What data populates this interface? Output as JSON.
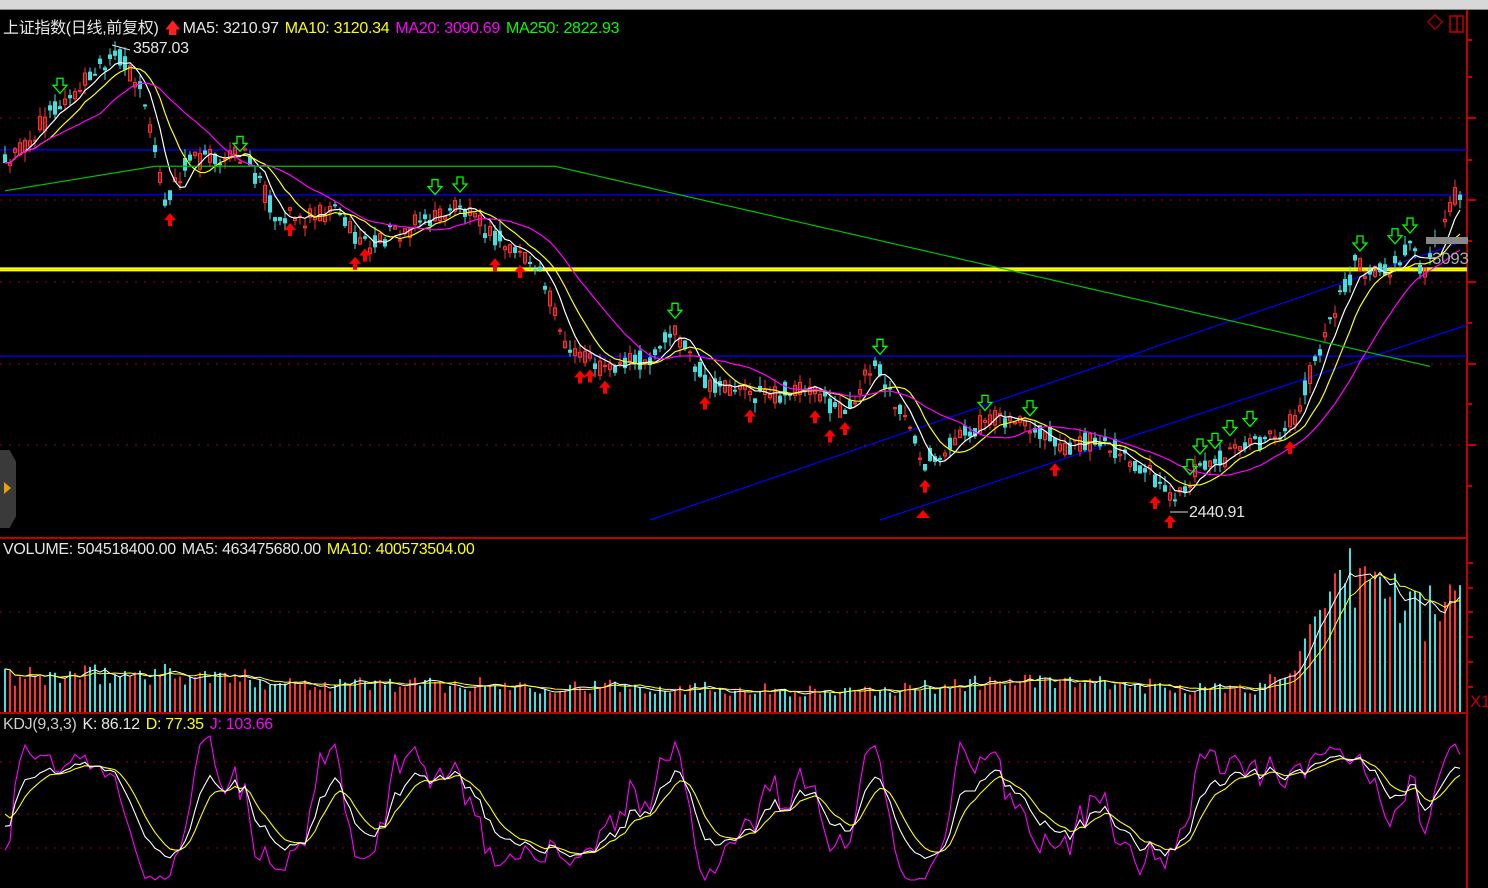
{
  "header": {
    "title": "上证指数(日线,前复权)",
    "ma5": "MA5: 3210.97",
    "ma10": "MA10: 3120.34",
    "ma20": "MA20: 3090.69",
    "ma250": "MA250: 2822.93"
  },
  "volume_header": {
    "volume": "VOLUME: 504518400.00",
    "ma5": "MA5: 463475680.00",
    "ma10": "MA10: 400573504.00"
  },
  "kdj_header": {
    "name": "KDJ(9,3,3)",
    "k": "K: 86.12",
    "d": "D: 77.35",
    "j": "J: 103.66"
  },
  "annotations": {
    "high_label": "3587.03",
    "low_label": "2440.91",
    "axis_partial_label": "3093",
    "volume_axis_unit": "X1"
  },
  "colors": {
    "up": "#ff3030",
    "down": "#40e0e0",
    "ma5": "#ffffff",
    "ma10": "#ffff00",
    "ma20": "#ff00ff",
    "ma250": "#00c000",
    "trendline": "#0000ff",
    "grid": "#a00000"
  },
  "chart_data": {
    "type": "candlestick",
    "title": "上证指数(日线,前复权)",
    "price_range": [
      2440.91,
      3587.03
    ],
    "close_keypoints": {
      "bar": [
        1,
        10,
        22,
        28,
        32,
        37,
        48,
        54,
        60,
        66,
        72,
        80,
        90,
        100,
        106,
        112,
        120,
        128,
        134,
        140,
        150,
        160,
        168,
        174,
        180,
        184,
        190,
        196,
        204,
        212,
        220,
        228,
        233,
        240,
        250,
        258,
        264,
        270,
        276,
        281,
        284,
        290
      ],
      "price": [
        3305,
        3428,
        3575,
        3452,
        3207,
        3305,
        3318,
        3171,
        3158,
        3183,
        3097,
        3134,
        3195,
        3097,
        3060,
        2865,
        2791,
        2816,
        2889,
        2767,
        2730,
        2742,
        2693,
        2803,
        2669,
        2571,
        2620,
        2669,
        2669,
        2607,
        2620,
        2546,
        2485,
        2558,
        2607,
        2669,
        2889,
        3048,
        3024,
        3085,
        3024,
        3220
      ]
    },
    "volume_keypoints": {
      "bar": [
        0,
        30,
        60,
        140,
        170,
        200,
        250,
        260,
        266,
        271,
        280,
        286,
        290
      ],
      "value": [
        140000000,
        160000000,
        120000000,
        100000000,
        80000000,
        130000000,
        90000000,
        250000000,
        450000000,
        580000000,
        450000000,
        400000000,
        504518400
      ]
    },
    "horizontal_lines": [
      3330,
      3220,
      3040,
      3035,
      2825
    ],
    "buy_signal_bars": [
      33,
      57,
      70,
      72,
      98,
      103,
      115,
      117,
      120,
      140,
      149,
      162,
      165,
      168,
      184,
      210,
      230,
      233,
      257
    ],
    "sell_signal_bars": [
      11,
      47,
      86,
      91,
      134,
      175,
      196,
      205,
      237,
      239,
      242,
      245,
      249,
      271,
      278,
      281
    ]
  }
}
